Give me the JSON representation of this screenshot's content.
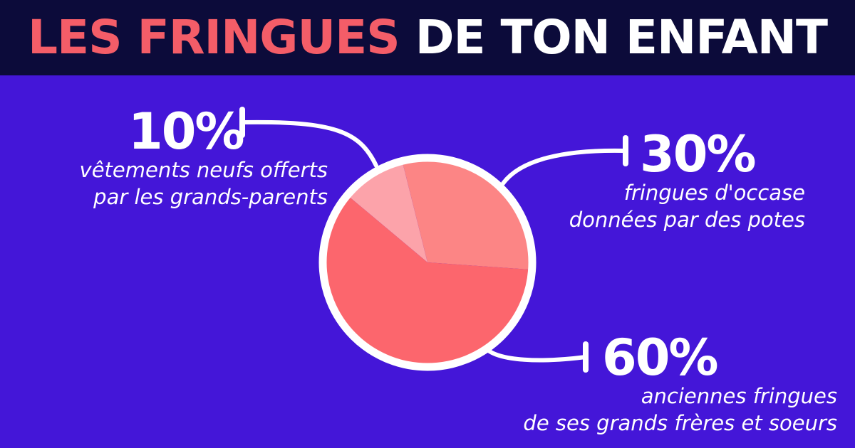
{
  "header": {
    "title_accent": "LES FRINGUES",
    "title_rest": "DE TON ENFANT"
  },
  "colors": {
    "background": "#4416d8",
    "header_bg": "#0c0b3a",
    "accent": "#f45d68",
    "slice_small": "#fca3aa",
    "slice_medium": "#fc8585",
    "slice_large": "#fc666d",
    "outline": "#ffffff"
  },
  "chart_data": {
    "type": "pie",
    "slices": [
      {
        "label": "vêtements neufs offerts par les grands-parents",
        "value": 10,
        "pct_text": "10%",
        "desc_line1": "vêtements neufs offerts",
        "desc_line2": "par les grands-parents"
      },
      {
        "label": "fringues d'occase données par des potes",
        "value": 30,
        "pct_text": "30%",
        "desc_line1": "fringues d'occase",
        "desc_line2": "données par des potes"
      },
      {
        "label": "anciennes fringues de ses grands frères et soeurs",
        "value": 60,
        "pct_text": "60%",
        "desc_line1": "anciennes fringues",
        "desc_line2": "de ses grands frères et soeurs"
      }
    ],
    "legend": "none",
    "labels": "callouts"
  }
}
